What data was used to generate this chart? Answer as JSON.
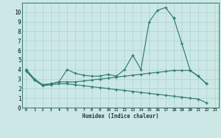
{
  "xlabel": "Humidex (Indice chaleur)",
  "color": "#2e7d6e",
  "bg_color": "#cce8e6",
  "grid_color": "#aacfcd",
  "xlim": [
    -0.5,
    23.5
  ],
  "ylim": [
    0,
    11
  ],
  "yticks": [
    0,
    1,
    2,
    3,
    4,
    5,
    6,
    7,
    8,
    9,
    10
  ],
  "spike_x": [
    0,
    1,
    2,
    3,
    4,
    5,
    6,
    7,
    8,
    9,
    10,
    11,
    12,
    13,
    14,
    15,
    16,
    17,
    18
  ],
  "spike_y": [
    4.0,
    3.0,
    2.4,
    2.5,
    2.7,
    4.0,
    3.6,
    3.4,
    3.3,
    3.3,
    3.5,
    3.3,
    4.0,
    5.5,
    4.0,
    9.0,
    10.2,
    10.5,
    9.4
  ],
  "right_x": [
    18,
    19,
    20,
    21,
    22
  ],
  "right_y": [
    9.4,
    6.7,
    3.9,
    3.3,
    2.5
  ],
  "mid_x": [
    0,
    1,
    2,
    3,
    4,
    5,
    6,
    7,
    8,
    9,
    10,
    11,
    12,
    13,
    14,
    15,
    16,
    17,
    18,
    19,
    20,
    21,
    22
  ],
  "mid_y": [
    4.0,
    3.0,
    2.4,
    2.5,
    2.7,
    2.7,
    2.7,
    2.8,
    2.9,
    3.0,
    3.1,
    3.2,
    3.3,
    3.4,
    3.5,
    3.6,
    3.7,
    3.8,
    3.9,
    3.9,
    3.9,
    3.3,
    2.5
  ],
  "bot_x": [
    0,
    1,
    2,
    3,
    4,
    5,
    6,
    7,
    8,
    9,
    10,
    11,
    12,
    13,
    14,
    15,
    16,
    17,
    18,
    19,
    20,
    21,
    22
  ],
  "bot_y": [
    3.8,
    2.9,
    2.3,
    2.4,
    2.5,
    2.5,
    2.4,
    2.3,
    2.2,
    2.1,
    2.0,
    1.9,
    1.8,
    1.7,
    1.6,
    1.5,
    1.4,
    1.3,
    1.2,
    1.1,
    1.0,
    0.9,
    0.5
  ],
  "xtick_labels": [
    "0",
    "1",
    "2",
    "3",
    "4",
    "5",
    "6",
    "7",
    "8",
    "9",
    "10",
    "11",
    "12",
    "13",
    "14",
    "15",
    "16",
    "17",
    "18",
    "19",
    "20",
    "21",
    "22",
    "23"
  ]
}
